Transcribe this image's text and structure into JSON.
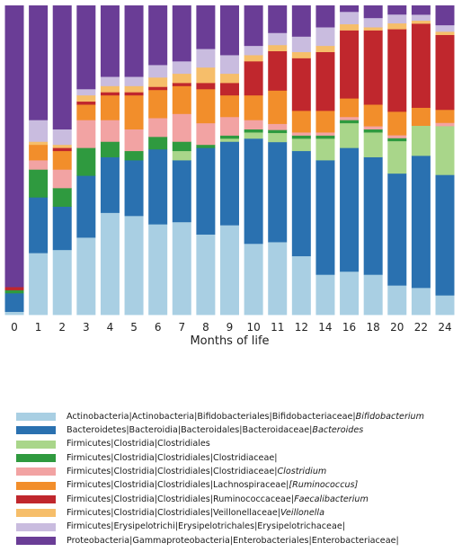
{
  "chart_data": {
    "type": "bar",
    "stacked": true,
    "normalized": true,
    "xlabel": "Months of life",
    "ylabel": "",
    "ylim": [
      0,
      1
    ],
    "categories": [
      "0",
      "1",
      "2",
      "3",
      "4",
      "5",
      "6",
      "7",
      "8",
      "9",
      "10",
      "11",
      "12",
      "14",
      "16",
      "18",
      "20",
      "22",
      "24"
    ],
    "series": [
      {
        "name": "Actinobacteria|Actinobacteria|Bifidobacteriales|Bifidobacteriaceae|Bifidobacterium",
        "label_plain": "Actinobacteria|Actinobacteria|Bifidobacteriales|Bifidobacteriaceae|",
        "label_italic": "Bifidobacterium",
        "color": "#a9cfe3",
        "values": [
          0.01,
          0.2,
          0.21,
          0.25,
          0.33,
          0.32,
          0.29,
          0.3,
          0.26,
          0.29,
          0.23,
          0.24,
          0.19,
          0.13,
          0.14,
          0.13,
          0.1,
          0.09,
          0.06
        ]
      },
      {
        "name": "Bacteroidetes|Bacteroidia|Bacteroidales|Bacteroidaceae|Bacteroides",
        "label_plain": "Bacteroidetes|Bacteroidia|Bacteroidales|Bacteroidaceae|",
        "label_italic": "Bacteroides",
        "color": "#2a71b0",
        "values": [
          0.06,
          0.18,
          0.14,
          0.2,
          0.18,
          0.18,
          0.24,
          0.2,
          0.28,
          0.27,
          0.34,
          0.33,
          0.34,
          0.37,
          0.4,
          0.38,
          0.38,
          0.44,
          0.37
        ]
      },
      {
        "name": "Firmicutes|Clostridia|Clostridiales",
        "label_plain": "Firmicutes|Clostridia|Clostridiales",
        "label_italic": "",
        "color": "#a9d68a",
        "values": [
          0,
          0,
          0,
          0,
          0,
          0,
          0,
          0.03,
          0,
          0.01,
          0.02,
          0.03,
          0.04,
          0.07,
          0.08,
          0.08,
          0.11,
          0.1,
          0.15
        ]
      },
      {
        "name": "Firmicutes|Clostridia|Clostridiales|Clostridiaceae",
        "label_plain": "Firmicutes|Clostridia|Clostridiales|Clostridiaceae|",
        "label_italic": "",
        "color": "#2f9a3f",
        "values": [
          0.01,
          0.09,
          0.06,
          0.09,
          0.05,
          0.03,
          0.04,
          0.03,
          0.01,
          0.01,
          0.01,
          0.01,
          0.01,
          0.01,
          0.01,
          0.01,
          0.01,
          0,
          0
        ]
      },
      {
        "name": "Firmicutes|Clostridia|Clostridiales|Clostridiaceae|Clostridium",
        "label_plain": "Firmicutes|Clostridia|Clostridiales|Clostridiaceae|",
        "label_italic": "Clostridium",
        "color": "#f2a3a3",
        "values": [
          0,
          0.03,
          0.06,
          0.09,
          0.07,
          0.07,
          0.06,
          0.09,
          0.07,
          0.06,
          0.03,
          0.02,
          0.01,
          0.01,
          0.01,
          0.01,
          0.01,
          0,
          0.01
        ]
      },
      {
        "name": "Firmicutes|Clostridia|Clostridiales|Lachnospiraceae|[Ruminococcus]",
        "label_plain": "Firmicutes|Clostridia|Clostridiales|Lachnospiraceae|",
        "label_italic": "[Ruminococcus]",
        "color": "#f28e2b",
        "values": [
          0,
          0.05,
          0.06,
          0.05,
          0.08,
          0.11,
          0.09,
          0.09,
          0.11,
          0.07,
          0.08,
          0.11,
          0.07,
          0.07,
          0.06,
          0.07,
          0.08,
          0.06,
          0.04
        ]
      },
      {
        "name": "Firmicutes|Clostridia|Clostridiales|Ruminococcaceae|Faecalibacterium",
        "label_plain": "Firmicutes|Clostridia|Clostridiales|Ruminococcaceae|",
        "label_italic": "Faecalibacterium",
        "color": "#c0272d",
        "values": [
          0.01,
          0,
          0.01,
          0.01,
          0.01,
          0.01,
          0.01,
          0.01,
          0.02,
          0.04,
          0.11,
          0.13,
          0.17,
          0.19,
          0.22,
          0.24,
          0.28,
          0.28,
          0.23
        ]
      },
      {
        "name": "Firmicutes|Clostridia|Clostridiales|Veillonellaceae|Veillonella",
        "label_plain": "Firmicutes|Clostridia|Clostridiales|Veillonellaceae|",
        "label_italic": "Veillonella",
        "color": "#f6be6a",
        "values": [
          0,
          0.01,
          0.01,
          0.02,
          0.02,
          0.02,
          0.03,
          0.03,
          0.05,
          0.03,
          0.02,
          0.02,
          0.02,
          0.02,
          0.02,
          0.01,
          0.02,
          0.01,
          0.01
        ]
      },
      {
        "name": "Firmicutes|Erysipelotrichi|Erysipelotrichales|Erysipelotrichaceae|",
        "label_plain": "Firmicutes|Erysipelotrichi|Erysipelotrichales|Erysipelotrichaceae|",
        "label_italic": "",
        "color": "#c9bcdf",
        "values": [
          0,
          0.07,
          0.05,
          0.02,
          0.03,
          0.03,
          0.04,
          0.04,
          0.06,
          0.06,
          0.03,
          0.04,
          0.05,
          0.06,
          0.04,
          0.03,
          0.03,
          0.02,
          0.02
        ]
      },
      {
        "name": "Proteobacteria|Gammaproteobacteria|Enterobacteriales|Enterobacteriaceae|",
        "label_plain": "Proteobacteria|Gammaproteobacteria|Enterobacteriales|Enterobacteriaceae|",
        "label_italic": "",
        "color": "#6a3d96",
        "values": [
          0.91,
          0.37,
          0.4,
          0.27,
          0.23,
          0.23,
          0.19,
          0.18,
          0.14,
          0.16,
          0.13,
          0.09,
          0.1,
          0.07,
          0.02,
          0.04,
          0.03,
          0.03,
          0.06
        ]
      }
    ]
  }
}
